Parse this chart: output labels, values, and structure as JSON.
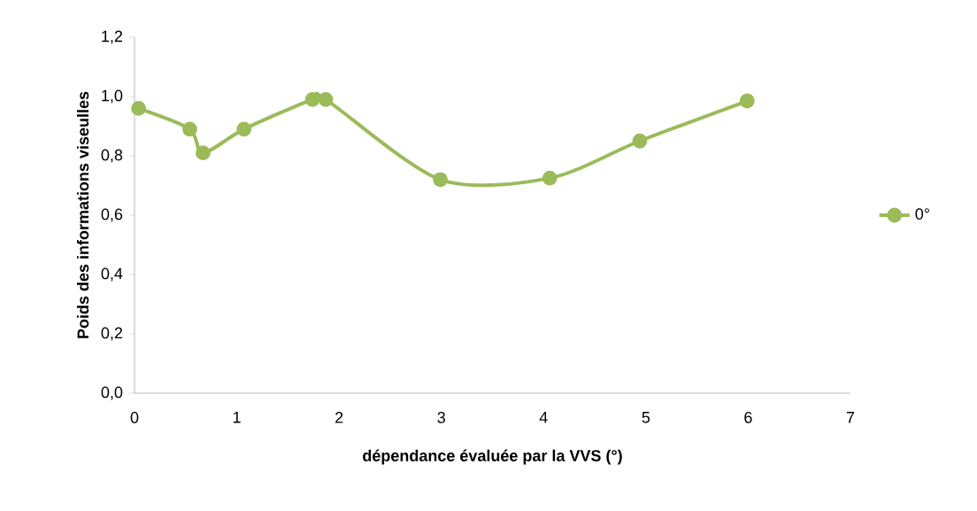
{
  "chart_data": {
    "type": "line",
    "xlabel": "dépendance évaluée par la VVS (°)",
    "ylabel": "Poids des informations viseulles",
    "x": [
      0.04,
      0.54,
      0.67,
      1.07,
      1.74,
      1.87,
      2.99,
      4.06,
      4.94,
      5.99
    ],
    "series": [
      {
        "name": "0°",
        "color": "#9bbb59",
        "values": [
          0.96,
          0.89,
          0.81,
          0.89,
          0.99,
          0.99,
          0.72,
          0.725,
          0.85,
          0.985
        ]
      }
    ],
    "xlim": [
      0,
      7
    ],
    "xticks": [
      0,
      1,
      2,
      3,
      4,
      5,
      6,
      7
    ],
    "ylim": [
      0,
      1.2
    ],
    "yticks": [
      {
        "value": 0,
        "label": "0,0"
      },
      {
        "value": 0.2,
        "label": "0,2"
      },
      {
        "value": 0.4,
        "label": "0,4"
      },
      {
        "value": 0.6,
        "label": "0,6"
      },
      {
        "value": 0.8,
        "label": "0,8"
      },
      {
        "value": 1.0,
        "label": "1,0"
      },
      {
        "value": 1.2,
        "label": "1,2"
      }
    ],
    "marker": "circle",
    "line_style": "solid",
    "legend": "right",
    "grid": false
  }
}
